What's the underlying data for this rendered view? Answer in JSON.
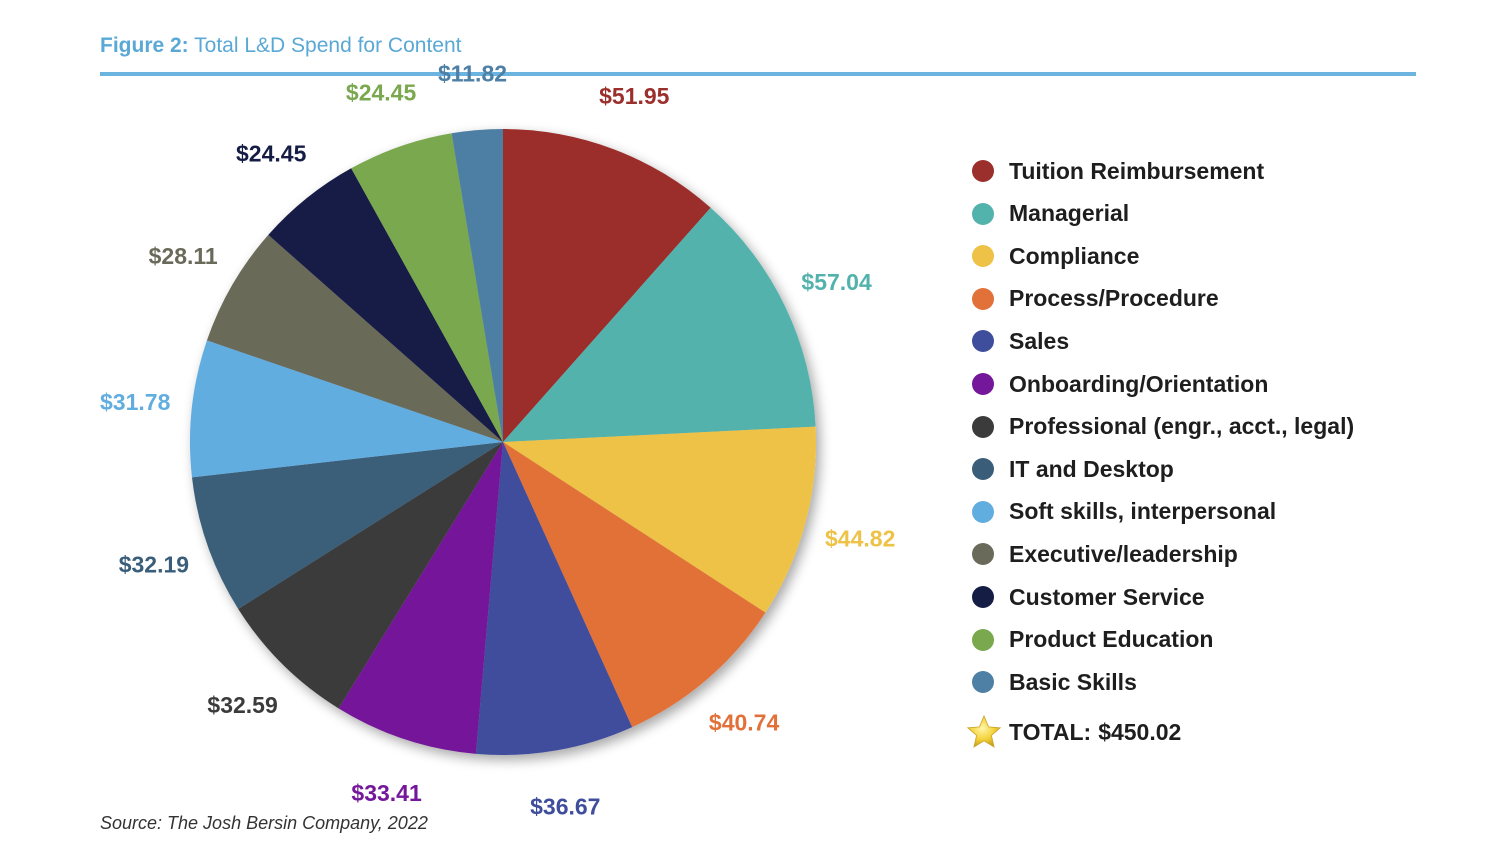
{
  "figure": {
    "title_lead": "Figure 2:",
    "title_rest": " Total L&D Spend for Content",
    "source": "Source: The Josh Bersin Company, 2022",
    "total_label": "TOTAL:",
    "total_value": "$450.02"
  },
  "chart_data": {
    "type": "pie",
    "title": "Total L&D Spend for Content",
    "currency": "$",
    "labels": [
      "Tuition Reimbursement",
      "Managerial",
      "Compliance",
      "Process/Procedure",
      "Sales",
      "Onboarding/Orientation",
      "Professional (engr., acct., legal)",
      "IT and Desktop",
      "Soft skills, interpersonal",
      "Executive/leadership",
      "Customer Service",
      "Product Education",
      "Basic Skills"
    ],
    "values": [
      51.95,
      57.04,
      44.82,
      40.74,
      36.67,
      33.41,
      32.59,
      32.19,
      31.78,
      28.11,
      24.45,
      24.45,
      11.82
    ],
    "value_labels": [
      "$51.95",
      "$57.04",
      "$44.82",
      "$40.74",
      "$36.67",
      "$33.41",
      "$32.59",
      "$32.19",
      "$31.78",
      "$28.11",
      "$24.45",
      "$24.45",
      "$11.82"
    ],
    "colors": [
      "#9b2f2c",
      "#52b2ac",
      "#eec147",
      "#e27139",
      "#3f4e9c",
      "#74179a",
      "#3b3b3b",
      "#3a5e79",
      "#62ade0",
      "#696a59",
      "#161d45",
      "#7aa84f",
      "#4e7fa4"
    ],
    "label_colors": [
      "#9b2f2c",
      "#52b2ac",
      "#eec147",
      "#e27139",
      "#3f4e9c",
      "#74179a",
      "#3b3b3b",
      "#3a5e79",
      "#62ade0",
      "#696a59",
      "#161d45",
      "#7aa84f",
      "#4e7fa4"
    ],
    "legend_position": "right"
  }
}
